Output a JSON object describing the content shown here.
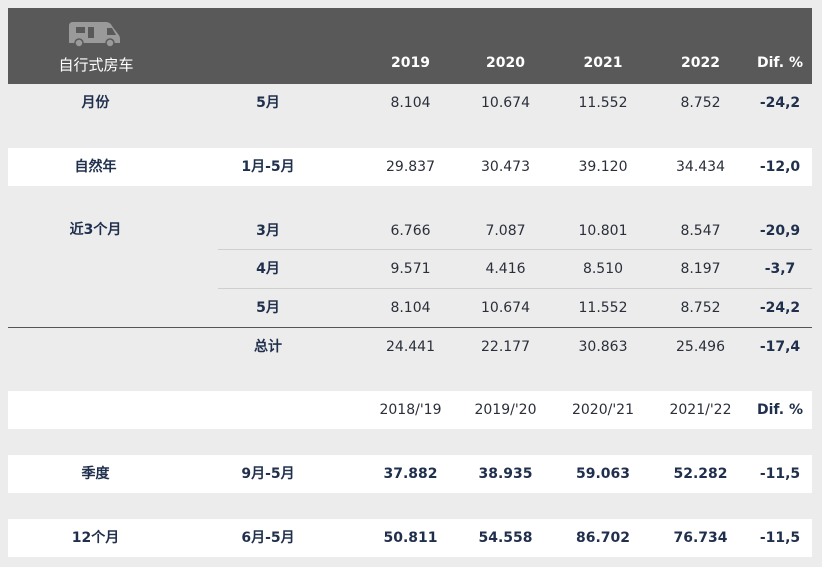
{
  "header": {
    "title": "自行式房车",
    "icon": "camper-van-icon",
    "years": [
      "2019",
      "2020",
      "2021",
      "2022"
    ],
    "dif": "Dif. %"
  },
  "rows": {
    "month": {
      "label": "月份",
      "period": "5月",
      "values": [
        "8.104",
        "10.674",
        "11.552",
        "8.752"
      ],
      "dif": "-24,2"
    },
    "ytd": {
      "label": "自然年",
      "period": "1月-5月",
      "values": [
        "29.837",
        "30.473",
        "39.120",
        "34.434"
      ],
      "dif": "-12,0"
    },
    "m3": {
      "label": "近3个月",
      "period": "3月",
      "values": [
        "6.766",
        "7.087",
        "10.801",
        "8.547"
      ],
      "dif": "-20,9"
    },
    "m4": {
      "period": "4月",
      "values": [
        "9.571",
        "4.416",
        "8.510",
        "8.197"
      ],
      "dif": "-3,7"
    },
    "m5": {
      "period": "5月",
      "values": [
        "8.104",
        "10.674",
        "11.552",
        "8.752"
      ],
      "dif": "-24,2"
    },
    "total": {
      "period": "总计",
      "values": [
        "24.441",
        "22.177",
        "30.863",
        "25.496"
      ],
      "dif": "-17,4"
    },
    "seasons": {
      "values": [
        "2018/'19",
        "2019/'20",
        "2020/'21",
        "2021/'22"
      ],
      "dif": "Dif. %"
    },
    "season": {
      "label": "季度",
      "period": "9月-5月",
      "values": [
        "37.882",
        "38.935",
        "59.063",
        "52.282"
      ],
      "dif": "-11,5"
    },
    "twelve": {
      "label": "12个月",
      "period": "6月-5月",
      "values": [
        "50.811",
        "54.558",
        "86.702",
        "76.734"
      ],
      "dif": "-11,5"
    }
  },
  "colors": {
    "header_bg": "#595959",
    "text": "#1f2f4c",
    "page_bg": "#ececec"
  }
}
